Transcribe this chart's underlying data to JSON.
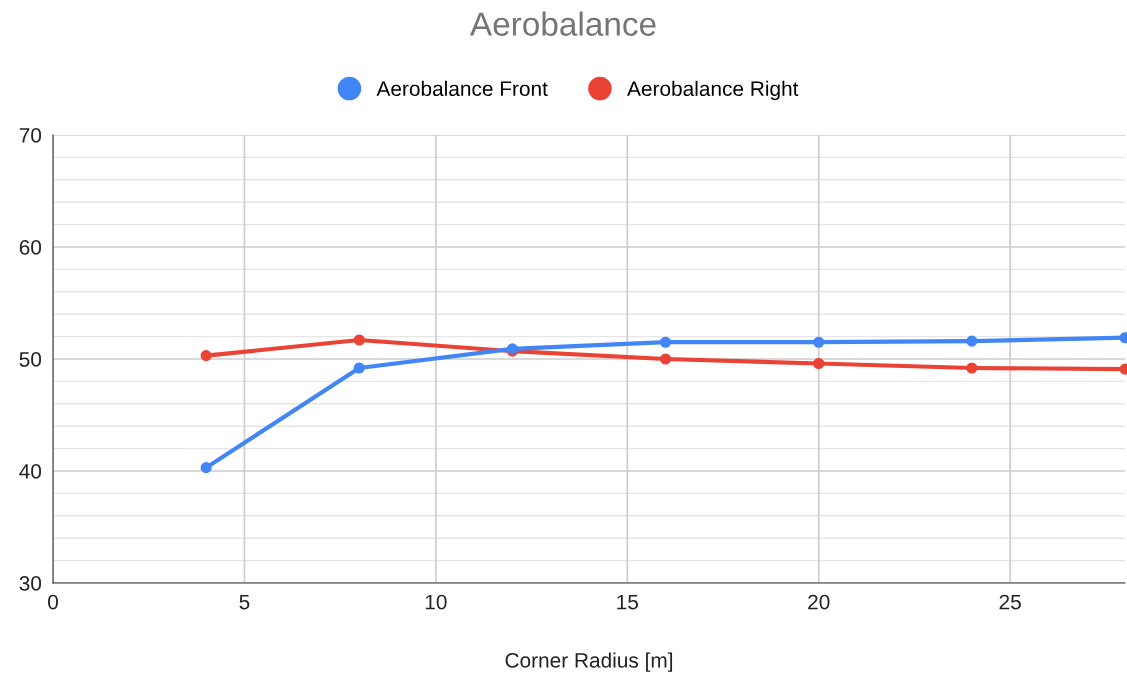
{
  "chart_data": {
    "type": "line",
    "title": "Aerobalance",
    "xlabel": "Corner Radius [m]",
    "x": [
      4,
      8,
      12,
      16,
      20,
      24,
      28
    ],
    "series": [
      {
        "name": "Aerobalance Front",
        "color": "#4285f4",
        "values": [
          40.3,
          49.2,
          50.9,
          51.5,
          51.5,
          51.6,
          51.9
        ]
      },
      {
        "name": "Aerobalance Right",
        "color": "#ea4335",
        "values": [
          50.3,
          51.7,
          50.7,
          50.0,
          49.6,
          49.2,
          49.1
        ]
      }
    ],
    "xlim": [
      0,
      28
    ],
    "xticks": [
      0,
      5,
      10,
      15,
      20,
      25
    ],
    "ylim": [
      30,
      70
    ],
    "yticks": [
      30,
      40,
      50,
      60,
      70
    ],
    "grid": true,
    "legend": "top",
    "marker": "circle",
    "line_style": "solid"
  }
}
